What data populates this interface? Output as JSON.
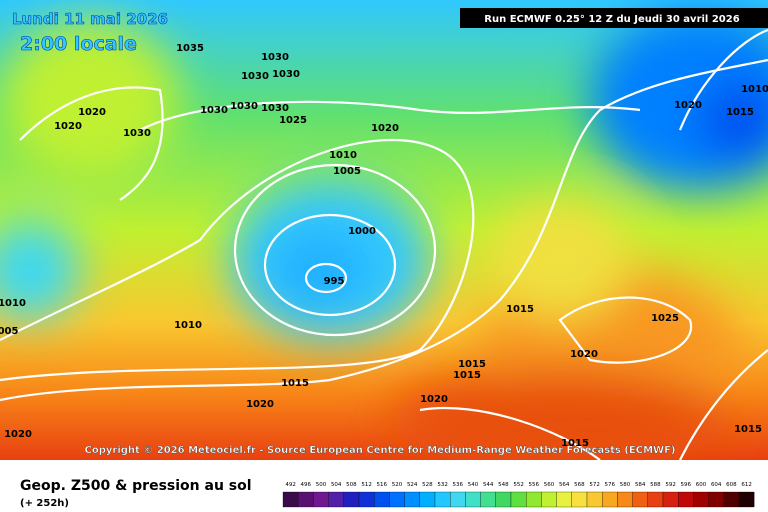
{
  "header": {
    "date": "Lundi 11 mai 2026",
    "time": "2:00 locale",
    "run": "Run ECMWF 0.25° 12 Z du Jeudi 30 avril 2026"
  },
  "isobar_labels": [
    "1035",
    "1030",
    "1030",
    "1030",
    "1030",
    "1030",
    "1030",
    "1020",
    "1020",
    "1030",
    "1025",
    "1020",
    "1010",
    "1005",
    "1000",
    "995",
    "1020",
    "1015",
    "1010",
    "1010",
    "005",
    "1010",
    "1015",
    "1025",
    "1020",
    "1015",
    "1015",
    "1015",
    "1020",
    "1020",
    "1020",
    "1015",
    "1015"
  ],
  "copyright": "Copyright © 2026 Meteociel.fr - Source European Centre for Medium-Range Weather Forecasts (ECMWF)",
  "footer": {
    "title": "Geop. Z500 & pression au sol",
    "lead": "(+ 252h)"
  },
  "scale": {
    "labels": [
      492,
      496,
      500,
      504,
      508,
      512,
      516,
      520,
      524,
      528,
      532,
      536,
      540,
      544,
      548,
      552,
      556,
      560,
      564,
      568,
      572,
      576,
      580,
      584,
      588,
      592,
      596,
      600,
      604,
      608,
      612
    ],
    "colors": [
      "#3a0a4a",
      "#5a1070",
      "#701890",
      "#5020a8",
      "#2020c0",
      "#1030d8",
      "#0050f0",
      "#0070ff",
      "#0090ff",
      "#00b0ff",
      "#20c8ff",
      "#40d8f0",
      "#40e0c8",
      "#40e090",
      "#40d860",
      "#60e040",
      "#90e830",
      "#c0f030",
      "#e8f040",
      "#f8e040",
      "#f8c830",
      "#f8a820",
      "#f88818",
      "#f06010",
      "#e84010",
      "#d82010",
      "#c00808",
      "#a00000",
      "#800000",
      "#500000",
      "#200000"
    ]
  }
}
